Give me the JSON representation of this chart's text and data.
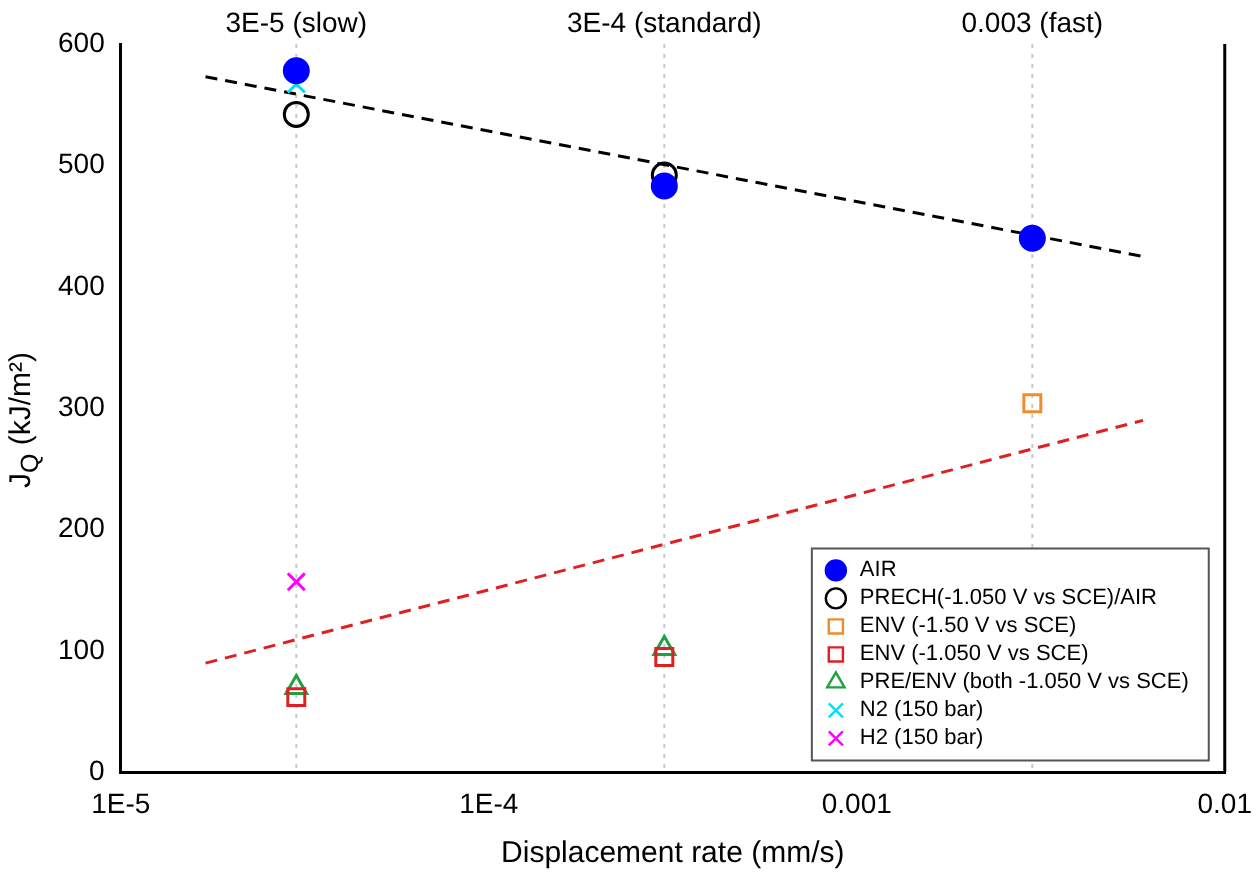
{
  "chart_data": {
    "type": "scatter",
    "xlabel": "Displacement rate (mm/s)",
    "ylabel": "J$_{Q}$ (kJ/m²)",
    "log": "x",
    "xlim": [
      1e-05,
      0.01
    ],
    "xticks": [
      {
        "value": 1e-05,
        "label": "1E-5"
      },
      {
        "value": 0.0001,
        "label": "1E-4"
      },
      0.001,
      0.01
    ],
    "ylim": [
      0,
      600
    ],
    "yticks": [
      0,
      100,
      200,
      300,
      400,
      500,
      600
    ],
    "grid": false,
    "legend": "bottom right",
    "ref_lines": [
      {
        "axis": "x",
        "value": 3e-05,
        "label": "3E-5 (slow)",
        "color": "#c8c8c8",
        "line_style": "dotted"
      },
      {
        "axis": "x",
        "value": 0.0003,
        "label": "3E-4 (standard)",
        "color": "#c8c8c8",
        "line_style": "dotted"
      },
      {
        "axis": "x",
        "value": 0.003,
        "label": "0.003 (fast)",
        "color": "#c8c8c8",
        "line_style": "dotted"
      }
    ],
    "series": [
      {
        "name": "AIR",
        "color": "#0000ff",
        "marker": "circle",
        "x": [
          3e-05,
          0.0003,
          0.003
        ],
        "values": [
          578,
          483,
          440
        ]
      },
      {
        "name": "PRECH(-1.050 V vs SCE)/AIR",
        "color": "#000000",
        "marker": "circle",
        "x": [
          3e-05,
          0.0003
        ],
        "values": [
          542,
          492
        ]
      },
      {
        "name": "ENV (-1.50 V vs SCE)",
        "color": "#f08c30",
        "marker": "square",
        "x": [
          0.003
        ],
        "values": [
          304
        ]
      },
      {
        "name": "ENV (-1.050 V vs SCE)",
        "color": "#e02020",
        "marker": "square",
        "x": [
          3e-05,
          0.0003
        ],
        "values": [
          62,
          95
        ]
      },
      {
        "name": "PRE/ENV (both -1.050 V vs SCE)",
        "color": "#20a040",
        "marker": "triangle",
        "x": [
          3e-05,
          0.0003
        ],
        "values": [
          70,
          102
        ]
      },
      {
        "name": "N2 (150 bar)",
        "color": "#00e0f0",
        "marker": "cross",
        "x": [
          3e-05
        ],
        "values": [
          567
        ]
      },
      {
        "name": "H2 (150 bar)",
        "color": "#ff00ff",
        "marker": "cross",
        "x": [
          3e-05
        ],
        "values": [
          157
        ]
      },
      {
        "type": "line",
        "color": "#000000",
        "line_style": "dashed",
        "marker": "none",
        "x": [
          1.7e-05,
          0.006
        ],
        "values": [
          573,
          425
        ]
      },
      {
        "type": "line",
        "color": "#e02020",
        "line_style": "dashed",
        "marker": "none",
        "x": [
          1.7e-05,
          0.006
        ],
        "values": [
          90,
          290
        ]
      }
    ]
  }
}
